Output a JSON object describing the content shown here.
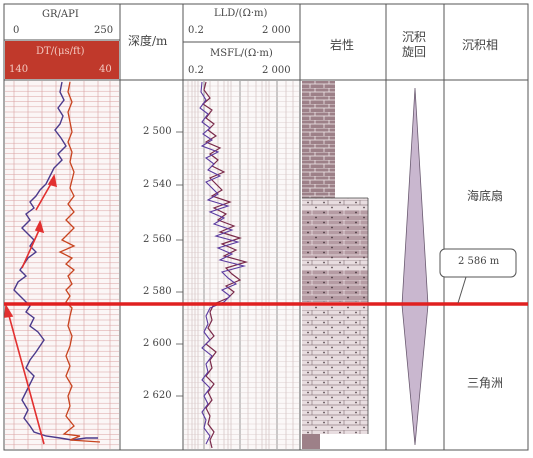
{
  "headers": {
    "gr_title": "GR/API",
    "gr_min": "0",
    "gr_max": "250",
    "dt_title": "DT/(μs/ft)",
    "dt_left": "140",
    "dt_right": "40",
    "depth_title": "深度/m",
    "lld_title": "LLD/(Ω·m)",
    "lld_min": "0.2",
    "lld_max": "2 000",
    "msfl_title": "MSFL/(Ω·m)",
    "msfl_min": "0.2",
    "msfl_max": "2 000",
    "lithology": "岩性",
    "cycle_line1": "沉积",
    "cycle_line2": "旋回",
    "facies": "沉积相"
  },
  "depth_ticks": [
    "2 500",
    "2 540",
    "2 560",
    "2 580",
    "2 600",
    "2 620"
  ],
  "facies": {
    "upper": "海底扇",
    "lower": "三角洲"
  },
  "callout": "2 586 m",
  "colors": {
    "header_red": "#c0392b",
    "boundary_red": "#e02020",
    "gr_purple": "#4b3a8c",
    "dt_red": "#c8441f",
    "grid_red": "#d9a0a0",
    "mudstone": "#9d8088",
    "sand_fill": "#e8dde0",
    "cycle_fill": "#c9b7cf"
  }
}
